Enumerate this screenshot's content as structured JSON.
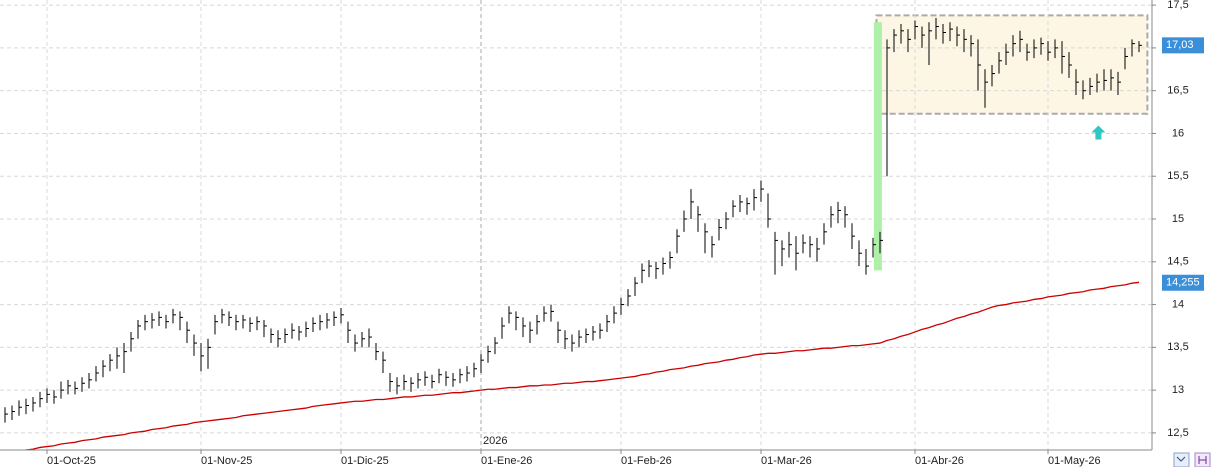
{
  "chart_data": {
    "type": "ohlc",
    "color": "#000000",
    "ylim": [
      12.3,
      17.56
    ],
    "yticks": [
      {
        "value": 12.5,
        "label": "12,5"
      },
      13,
      {
        "value": 13.5,
        "label": "13,5"
      },
      14,
      {
        "value": 14.5,
        "label": "14,5"
      },
      15,
      {
        "value": 15.5,
        "label": "15,5"
      },
      16,
      {
        "value": 16.5,
        "label": "16,5"
      },
      17,
      {
        "value": 17.5,
        "label": "17,5"
      }
    ],
    "grid": true,
    "year_label": "2026",
    "year_index": 68,
    "categories": [
      null,
      null,
      null,
      null,
      null,
      null,
      "01-Oct-25",
      null,
      null,
      null,
      null,
      null,
      null,
      null,
      null,
      null,
      null,
      null,
      null,
      null,
      null,
      null,
      null,
      null,
      null,
      null,
      null,
      null,
      "01-Nov-25",
      null,
      null,
      null,
      null,
      null,
      null,
      null,
      null,
      null,
      null,
      null,
      null,
      null,
      null,
      null,
      null,
      null,
      null,
      null,
      "01-Dic-25",
      null,
      null,
      null,
      null,
      null,
      null,
      null,
      null,
      null,
      null,
      null,
      null,
      null,
      null,
      null,
      null,
      null,
      null,
      null,
      "01-Ene-26",
      null,
      null,
      null,
      null,
      null,
      null,
      null,
      null,
      null,
      null,
      null,
      null,
      null,
      null,
      null,
      null,
      null,
      null,
      null,
      "01-Feb-26",
      null,
      null,
      null,
      null,
      null,
      null,
      null,
      null,
      null,
      null,
      null,
      null,
      null,
      null,
      null,
      null,
      null,
      null,
      null,
      "01-Mar-26",
      null,
      null,
      null,
      null,
      null,
      null,
      null,
      null,
      null,
      null,
      null,
      null,
      null,
      null,
      null,
      null,
      null,
      null,
      null,
      null,
      null,
      "01-Abr-26",
      null,
      null,
      null,
      null,
      null,
      null,
      null,
      null,
      null,
      null,
      null,
      null,
      null,
      null,
      null,
      null,
      null,
      null,
      "01-May-26",
      null,
      null,
      null,
      null,
      null,
      null,
      null,
      null,
      null,
      null,
      null,
      null,
      null
    ],
    "high": [
      12.8,
      12.82,
      12.88,
      12.9,
      12.92,
      12.98,
      13.02,
      13.0,
      13.1,
      13.12,
      13.1,
      13.15,
      13.2,
      13.28,
      13.35,
      13.42,
      13.5,
      13.55,
      13.68,
      13.82,
      13.88,
      13.9,
      13.92,
      13.88,
      13.95,
      13.92,
      13.8,
      13.65,
      13.55,
      13.6,
      13.88,
      13.95,
      13.92,
      13.88,
      13.88,
      13.85,
      13.86,
      13.82,
      13.72,
      13.7,
      13.72,
      13.78,
      13.75,
      13.8,
      13.85,
      13.88,
      13.9,
      13.92,
      13.96,
      13.8,
      13.65,
      13.68,
      13.72,
      13.55,
      13.45,
      13.2,
      13.15,
      13.18,
      13.15,
      13.2,
      13.22,
      13.18,
      13.25,
      13.22,
      13.2,
      13.25,
      13.28,
      13.32,
      13.42,
      13.52,
      13.62,
      13.85,
      13.98,
      13.92,
      13.85,
      13.8,
      13.88,
      13.98,
      14.0,
      13.8,
      13.7,
      13.65,
      13.7,
      13.72,
      13.75,
      13.78,
      13.88,
      13.98,
      14.08,
      14.18,
      14.32,
      14.48,
      14.52,
      14.5,
      14.55,
      14.62,
      14.88,
      15.1,
      15.35,
      15.15,
      14.95,
      14.8,
      15.0,
      15.08,
      15.22,
      15.28,
      15.25,
      15.35,
      15.45,
      15.3,
      14.85,
      14.75,
      14.85,
      14.8,
      14.82,
      14.8,
      14.78,
      14.95,
      15.15,
      15.2,
      15.15,
      14.95,
      14.75,
      14.65,
      14.78,
      14.85,
      17.1,
      17.22,
      17.28,
      17.22,
      17.32,
      17.25,
      17.3,
      17.35,
      17.28,
      17.3,
      17.25,
      17.22,
      17.15,
      17.1,
      16.75,
      16.8,
      16.95,
      17.05,
      17.15,
      17.2,
      17.05,
      17.1,
      17.12,
      17.08,
      17.1,
      17.08,
      16.95,
      16.75,
      16.62,
      16.65,
      16.7,
      16.75,
      16.75,
      16.72,
      17.0,
      17.1,
      17.08
    ],
    "low": [
      12.62,
      12.65,
      12.7,
      12.72,
      12.75,
      12.8,
      12.85,
      12.84,
      12.9,
      12.95,
      12.95,
      12.98,
      13.02,
      13.1,
      13.15,
      13.22,
      13.25,
      13.2,
      13.45,
      13.6,
      13.7,
      13.72,
      13.75,
      13.72,
      13.78,
      13.7,
      13.55,
      13.4,
      13.22,
      13.25,
      13.65,
      13.78,
      13.75,
      13.7,
      13.72,
      13.68,
      13.7,
      13.62,
      13.55,
      13.5,
      13.55,
      13.6,
      13.58,
      13.62,
      13.68,
      13.7,
      13.72,
      13.75,
      13.78,
      13.55,
      13.45,
      13.5,
      13.5,
      13.35,
      13.2,
      12.98,
      12.95,
      13.0,
      12.98,
      13.02,
      13.05,
      13.02,
      13.08,
      13.05,
      13.04,
      13.08,
      13.1,
      13.15,
      13.2,
      13.32,
      13.42,
      13.6,
      13.78,
      13.7,
      13.62,
      13.55,
      13.65,
      13.8,
      13.8,
      13.55,
      13.48,
      13.45,
      13.5,
      13.55,
      13.58,
      13.6,
      13.68,
      13.78,
      13.88,
      13.98,
      14.1,
      14.25,
      14.32,
      14.3,
      14.35,
      14.42,
      14.6,
      14.85,
      15.0,
      14.85,
      14.6,
      14.55,
      14.75,
      14.88,
      15.02,
      15.08,
      15.05,
      15.1,
      15.2,
      14.9,
      14.35,
      14.45,
      14.55,
      14.4,
      14.6,
      14.55,
      14.5,
      14.7,
      14.9,
      14.95,
      14.9,
      14.65,
      14.45,
      14.35,
      14.55,
      14.6,
      15.5,
      16.95,
      17.05,
      16.95,
      17.1,
      17.0,
      16.8,
      17.1,
      17.05,
      17.08,
      17.02,
      16.95,
      16.9,
      16.5,
      16.3,
      16.55,
      16.7,
      16.8,
      16.9,
      16.95,
      16.85,
      16.88,
      16.92,
      16.85,
      16.88,
      16.7,
      16.65,
      16.45,
      16.4,
      16.45,
      16.48,
      16.5,
      16.5,
      16.45,
      16.75,
      16.9,
      16.95
    ],
    "close": [
      12.72,
      12.75,
      12.8,
      12.82,
      12.85,
      12.9,
      12.95,
      12.92,
      13.0,
      13.05,
      13.02,
      13.08,
      13.12,
      13.2,
      13.28,
      13.35,
      13.4,
      13.45,
      13.6,
      13.75,
      13.8,
      13.82,
      13.85,
      13.8,
      13.88,
      13.85,
      13.7,
      13.55,
      13.4,
      13.5,
      13.8,
      13.88,
      13.85,
      13.8,
      13.82,
      13.78,
      13.8,
      13.75,
      13.65,
      13.6,
      13.65,
      13.7,
      13.68,
      13.72,
      13.78,
      13.8,
      13.82,
      13.85,
      13.88,
      13.7,
      13.55,
      13.6,
      13.62,
      13.45,
      13.35,
      13.1,
      13.05,
      13.1,
      13.08,
      13.12,
      13.15,
      13.1,
      13.18,
      13.15,
      13.12,
      13.18,
      13.2,
      13.25,
      13.35,
      13.45,
      13.55,
      13.75,
      13.9,
      13.85,
      13.75,
      13.7,
      13.8,
      13.9,
      13.92,
      13.7,
      13.6,
      13.55,
      13.62,
      13.65,
      13.68,
      13.7,
      13.8,
      13.9,
      14.0,
      14.1,
      14.25,
      14.4,
      14.45,
      14.42,
      14.48,
      14.55,
      14.8,
      15.0,
      15.2,
      15.05,
      14.85,
      14.7,
      14.9,
      15.0,
      15.15,
      15.2,
      15.18,
      15.25,
      15.35,
      15.0,
      14.75,
      14.65,
      14.7,
      14.6,
      14.72,
      14.7,
      14.65,
      14.85,
      15.05,
      15.1,
      15.05,
      14.8,
      14.6,
      14.45,
      14.7,
      14.75,
      17.0,
      17.15,
      17.2,
      17.1,
      17.25,
      17.15,
      17.2,
      17.25,
      17.18,
      17.22,
      17.15,
      17.1,
      17.05,
      16.8,
      16.6,
      16.7,
      16.85,
      16.95,
      17.05,
      17.1,
      16.95,
      17.0,
      17.05,
      16.95,
      17.0,
      16.9,
      16.8,
      16.6,
      16.5,
      16.55,
      16.6,
      16.62,
      16.65,
      16.6,
      16.9,
      17.05,
      17.03
    ],
    "ma": {
      "color": "#cc0000",
      "values": [
        12.26,
        12.27,
        12.29,
        12.3,
        12.31,
        12.33,
        12.34,
        12.35,
        12.37,
        12.38,
        12.39,
        12.41,
        12.42,
        12.43,
        12.45,
        12.46,
        12.47,
        12.48,
        12.5,
        12.51,
        12.52,
        12.54,
        12.55,
        12.56,
        12.58,
        12.59,
        12.6,
        12.62,
        12.63,
        12.64,
        12.65,
        12.66,
        12.67,
        12.68,
        12.7,
        12.71,
        12.72,
        12.73,
        12.74,
        12.75,
        12.76,
        12.77,
        12.78,
        12.79,
        12.81,
        12.82,
        12.83,
        12.84,
        12.85,
        12.86,
        12.87,
        12.87,
        12.88,
        12.89,
        12.89,
        12.9,
        12.91,
        12.92,
        12.92,
        12.93,
        12.94,
        12.94,
        12.95,
        12.96,
        12.97,
        12.97,
        12.98,
        12.99,
        13.0,
        13.01,
        13.01,
        13.02,
        13.03,
        13.03,
        13.04,
        13.05,
        13.05,
        13.06,
        13.06,
        13.07,
        13.08,
        13.08,
        13.09,
        13.1,
        13.1,
        13.11,
        13.12,
        13.13,
        13.14,
        13.15,
        13.16,
        13.18,
        13.19,
        13.21,
        13.22,
        13.24,
        13.25,
        13.26,
        13.28,
        13.29,
        13.31,
        13.32,
        13.33,
        13.35,
        13.36,
        13.38,
        13.39,
        13.41,
        13.42,
        13.43,
        13.43,
        13.44,
        13.45,
        13.46,
        13.46,
        13.47,
        13.48,
        13.49,
        13.49,
        13.5,
        13.51,
        13.52,
        13.52,
        13.53,
        13.54,
        13.55,
        13.58,
        13.6,
        13.63,
        13.65,
        13.68,
        13.71,
        13.73,
        13.76,
        13.78,
        13.81,
        13.84,
        13.86,
        13.89,
        13.91,
        13.94,
        13.97,
        13.99,
        14.0,
        14.02,
        14.03,
        14.04,
        14.06,
        14.07,
        14.09,
        14.1,
        14.11,
        14.13,
        14.14,
        14.15,
        14.17,
        14.18,
        14.19,
        14.21,
        14.22,
        14.23,
        14.25,
        14.26
      ]
    },
    "last_price": {
      "value": 17.03,
      "label": "17,03",
      "color": "#3b8fd9"
    },
    "ma_price": {
      "value": 14.255,
      "label": "14,255",
      "color": "#3b8fd9"
    },
    "gap_highlight": {
      "index": 124.7,
      "range": [
        14.4,
        17.3
      ],
      "color": "#aef0a8"
    },
    "range_box": {
      "start": 124.5,
      "end": 163.2,
      "range": [
        16.23,
        17.38
      ],
      "color": "#fdf6e4"
    },
    "arrow": {
      "index": 156.2,
      "value": 16.0,
      "color": "#35c4c4"
    }
  }
}
